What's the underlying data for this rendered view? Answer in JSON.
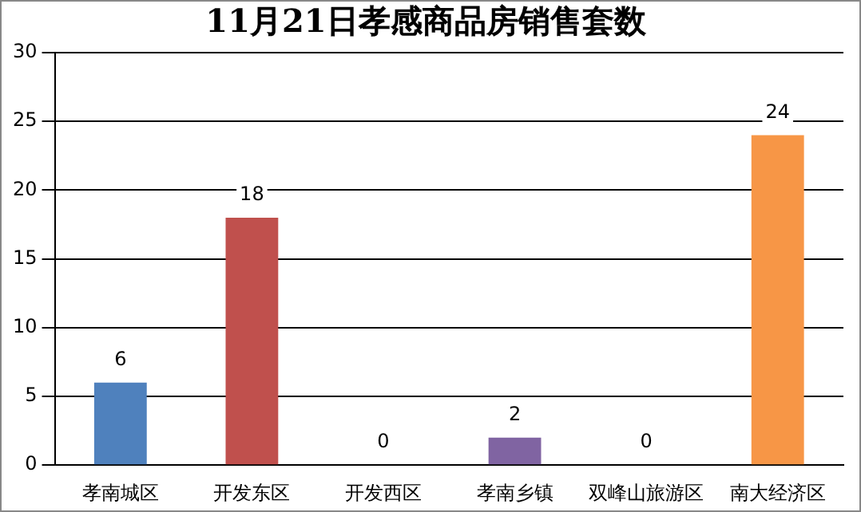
{
  "chart_data": {
    "type": "bar",
    "title": "11月21日孝感商品房销售套数",
    "categories": [
      "孝南城区",
      "开发东区",
      "开发西区",
      "孝南乡镇",
      "双峰山旅游区",
      "南大经济区"
    ],
    "values": [
      6,
      18,
      0,
      2,
      0,
      24
    ],
    "colors": [
      "#4f81bd",
      "#c0504d",
      "#9bbb59",
      "#8064a2",
      "#4bacc6",
      "#f79646"
    ],
    "ylim": [
      0,
      30
    ],
    "yticks": [
      0,
      5,
      10,
      15,
      20,
      25,
      30
    ],
    "grid": "y",
    "legend": false,
    "data_labels": true
  }
}
